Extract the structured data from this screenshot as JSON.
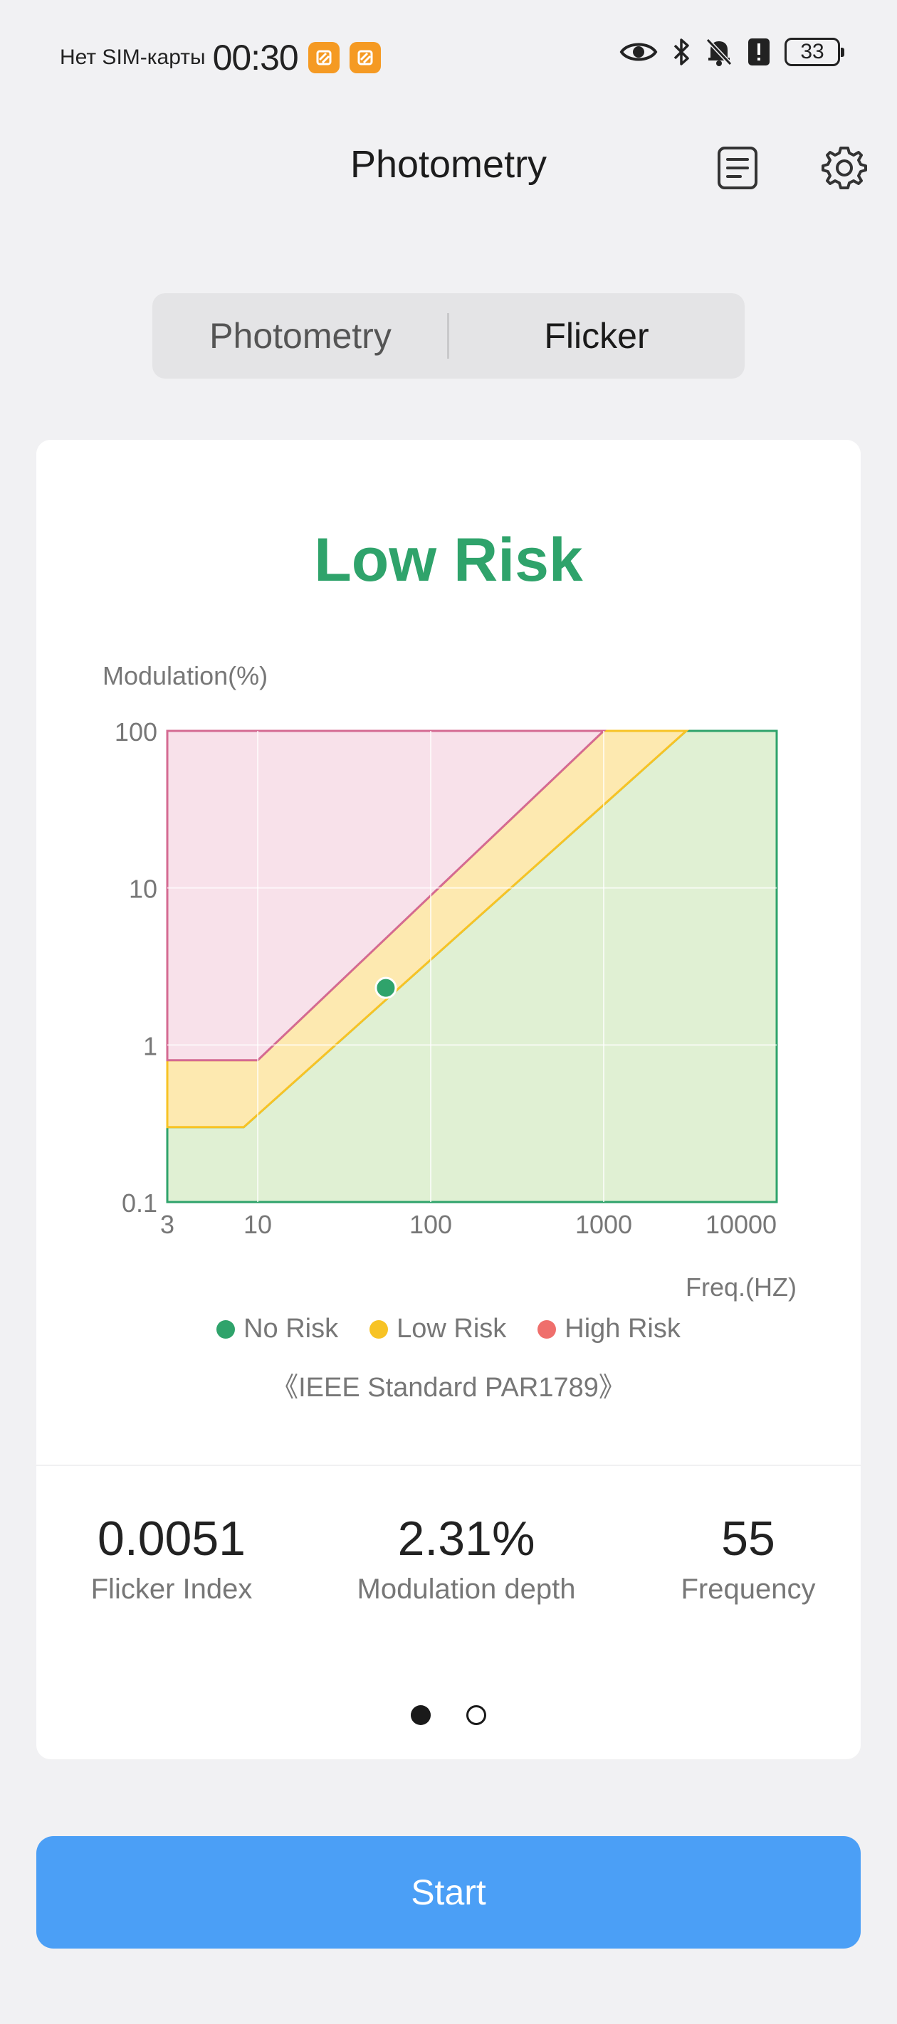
{
  "status_bar": {
    "carrier": "Нет SIM-карты",
    "time": "00:30",
    "battery": "33",
    "icons": [
      "eye-icon",
      "bluetooth-icon",
      "bell-off-icon",
      "alert-icon"
    ]
  },
  "header": {
    "title": "Photometry",
    "icons": [
      "document-icon",
      "gear-icon"
    ]
  },
  "tabs": [
    {
      "label": "Photometry",
      "active": false
    },
    {
      "label": "Flicker",
      "active": true
    }
  ],
  "result": {
    "risk_label": "Low Risk",
    "risk_color": "#2fa36b"
  },
  "chart_data": {
    "type": "area",
    "ylabel": "Modulation(%)",
    "xlabel": "Freq.(HZ)",
    "x_scale": "log",
    "y_scale": "log",
    "xlim": [
      3,
      10000
    ],
    "ylim": [
      0.1,
      100
    ],
    "x_ticks": [
      "3",
      "10",
      "100",
      "1000",
      "10000"
    ],
    "y_ticks": [
      "100",
      "10",
      "1",
      "0.1"
    ],
    "grid": true,
    "legend_position": "bottom",
    "series": [
      {
        "name": "No Risk",
        "color": "#2fa36b",
        "fill": "#e0f0d3",
        "boundary": [
          [
            3,
            0.3
          ],
          [
            8.3,
            0.3
          ],
          [
            3000,
            100
          ]
        ]
      },
      {
        "name": "Low Risk",
        "color": "#f7c325",
        "fill": "#fde9b0",
        "boundary": [
          [
            3,
            0.8
          ],
          [
            10,
            0.8
          ],
          [
            1000,
            100
          ]
        ]
      },
      {
        "name": "High Risk",
        "color": "#ef6f6c",
        "fill": "#f8e1ea",
        "boundary": [
          [
            3,
            0.8
          ],
          [
            10,
            0.8
          ],
          [
            1000,
            100
          ]
        ]
      }
    ],
    "measurement": {
      "x": 55,
      "y": 2.31,
      "color": "#2fa36b"
    }
  },
  "legend": [
    {
      "label": "No Risk",
      "color": "#2fa36b"
    },
    {
      "label": "Low Risk",
      "color": "#f7c325"
    },
    {
      "label": "High Risk",
      "color": "#ef6f6c"
    }
  ],
  "standard_note": "《IEEE Standard PAR1789》",
  "metrics": [
    {
      "value": "0.0051",
      "label": "Flicker Index"
    },
    {
      "value": "2.31%",
      "label": "Modulation depth"
    },
    {
      "value": "55",
      "label": "Frequency"
    }
  ],
  "pager": {
    "count": 2,
    "active_index": 0
  },
  "start_button": {
    "label": "Start"
  }
}
